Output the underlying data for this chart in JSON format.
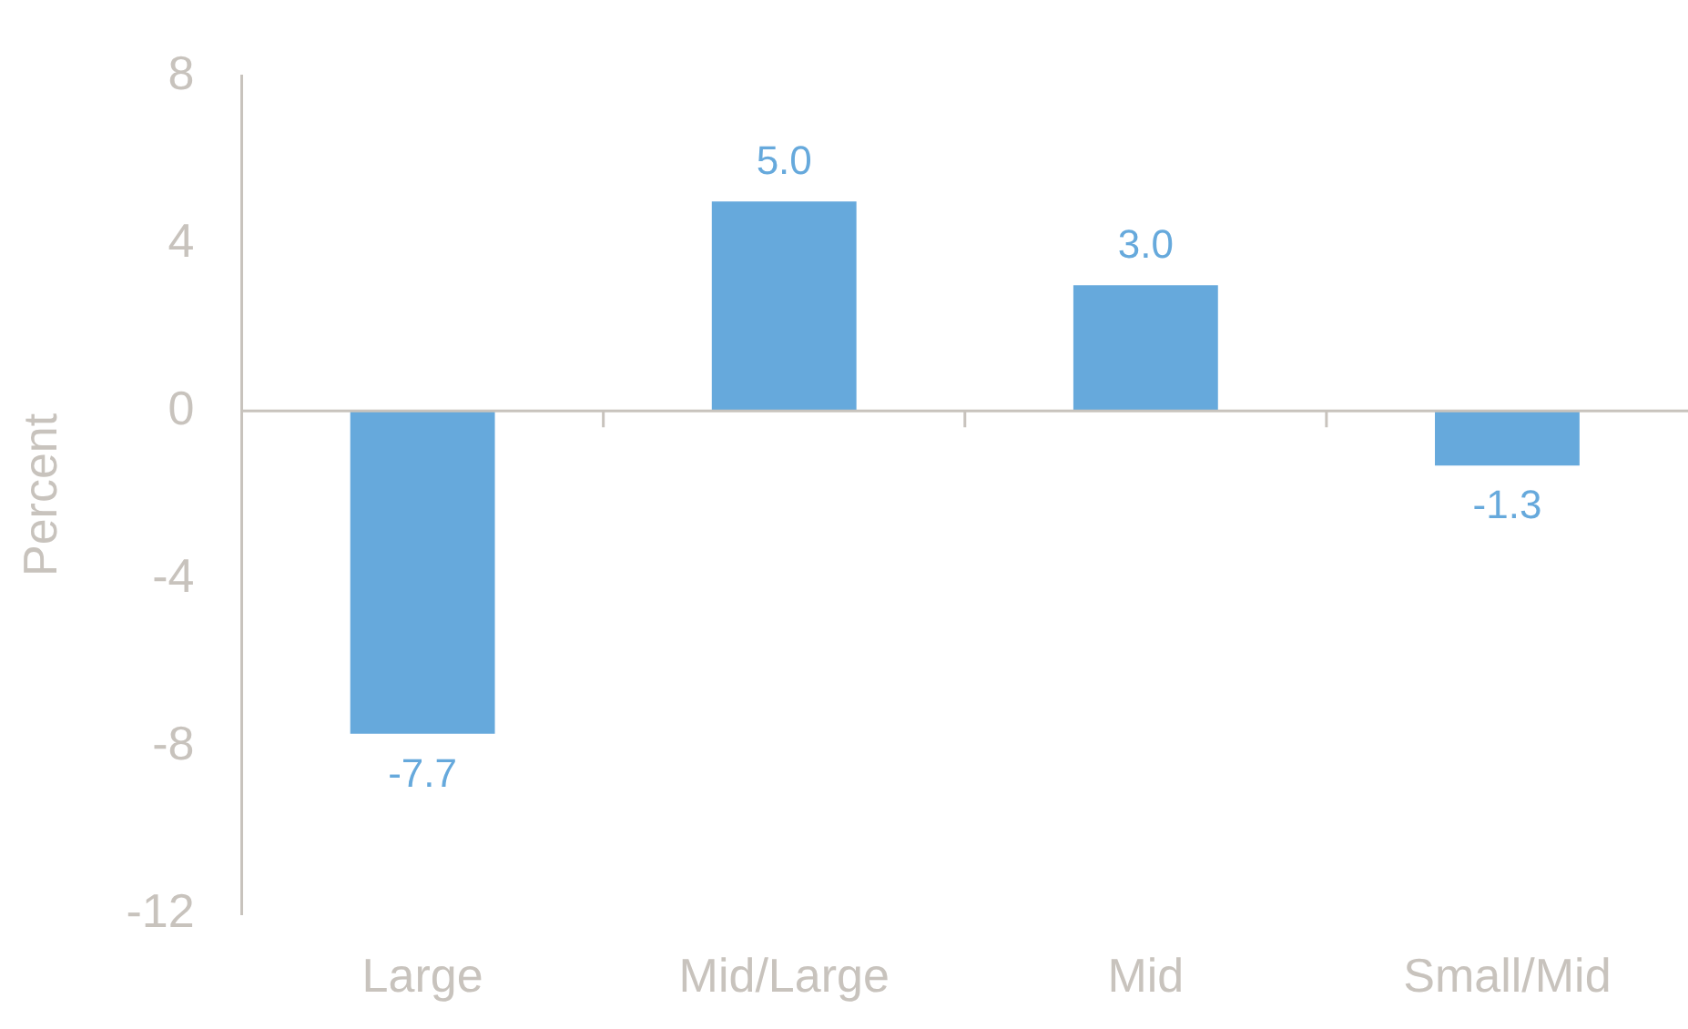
{
  "chart_data": {
    "type": "bar",
    "ylabel": "Percent",
    "categories": [
      "Large",
      "Mid/Large",
      "Mid",
      "Small/Mid"
    ],
    "values": [
      -7.7,
      5.0,
      3.0,
      -1.3
    ],
    "color": "#66a9dc",
    "value_labels": [
      "-7.7",
      "5.0",
      "3.0",
      "-1.3"
    ],
    "ylim": [
      -12,
      8
    ],
    "yticks": [
      -12,
      -8,
      -4,
      0,
      4,
      8
    ],
    "legend": false
  }
}
